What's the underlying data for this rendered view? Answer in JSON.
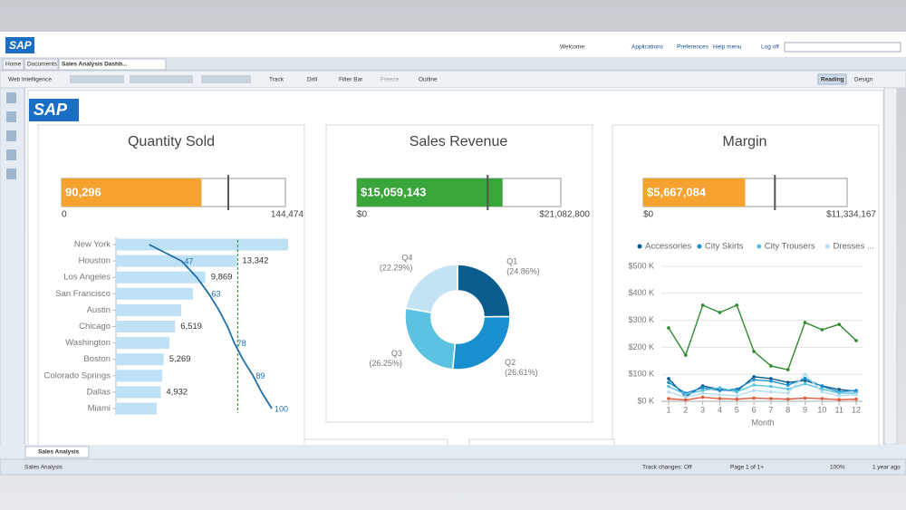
{
  "header": {
    "logo": "SAP",
    "welcome": "Welcome:",
    "links": [
      "Applications",
      "Preferences",
      "Help menu",
      "Log off"
    ]
  },
  "tabs": [
    "Home",
    "Documents",
    "Sales Analysis Dashb..."
  ],
  "toolbar": {
    "app": "Web Intelligence",
    "items": [
      "Track",
      "Drill",
      "Filter Bar",
      "Freeze",
      "Outline"
    ],
    "modes": [
      "Reading",
      "Design"
    ]
  },
  "dashboard": {
    "logo": "SAP",
    "quantity": {
      "title": "Quantity Sold",
      "gauge": {
        "value": 90296,
        "value_label": "90,296",
        "target": 107600,
        "range": [
          0,
          144474
        ],
        "range_labels": [
          "0",
          "144,474"
        ],
        "color": "#f5a231"
      },
      "bars": {
        "categories": [
          "New York",
          "Houston",
          "Los Angeles",
          "San Francisco",
          "Austin",
          "Chicago",
          "Washington",
          "Boston",
          "Colorado Springs",
          "Dallas",
          "Miami"
        ],
        "values": [
          19000,
          13342,
          9869,
          8500,
          7200,
          6519,
          5900,
          5269,
          5100,
          4932,
          4500
        ],
        "value_labels": [
          null,
          "13,342",
          "9,869",
          null,
          null,
          "6,519",
          null,
          "5,269",
          null,
          "4,932",
          null
        ],
        "xlim": [
          0,
          20000
        ],
        "color": "#bfe1f6",
        "pareto": {
          "values": [
            28,
            47,
            56,
            63,
            69,
            74,
            78,
            83,
            89,
            94,
            100
          ],
          "value_labels": [
            null,
            "47",
            null,
            "63",
            null,
            null,
            "78",
            null,
            "89",
            null,
            "100"
          ],
          "xlim": [
            0,
            100
          ],
          "color": "#1f6fa8",
          "threshold": 80,
          "threshold_color": "#3a9a3a"
        }
      }
    },
    "revenue": {
      "title": "Sales Revenue",
      "gauge": {
        "value": 15059143,
        "value_label": "$15,059,143",
        "target": 13520000,
        "range": [
          0,
          21082800
        ],
        "range_labels": [
          "$0",
          "$21,082,800"
        ],
        "color": "#3aa53a"
      },
      "pie": {
        "categories": [
          "Q1",
          "Q2",
          "Q3",
          "Q4"
        ],
        "values": [
          24.86,
          26.61,
          26.25,
          22.29
        ],
        "value_labels": [
          "(24.86%)",
          "(26.61%)",
          "(26.25%)",
          "(22.29%)"
        ],
        "colors": [
          "#0b5d8f",
          "#1a8fd0",
          "#5cc2e2",
          "#c3e3f4"
        ]
      }
    },
    "margin": {
      "title": "Margin",
      "gauge": {
        "value": 5667084,
        "value_label": "$5,667,084",
        "target": 7320000,
        "range": [
          0,
          11334167
        ],
        "range_labels": [
          "$0",
          "$11,334,167"
        ],
        "color": "#f5a231"
      },
      "lines": {
        "x": [
          1,
          2,
          3,
          4,
          5,
          6,
          7,
          8,
          9,
          10,
          11,
          12
        ],
        "xlim": [
          1,
          12
        ],
        "ylim": [
          0,
          500000
        ],
        "yticks": [
          {
            "value": 0,
            "label": "$0 K"
          },
          {
            "value": 100000,
            "label": "$100 K"
          },
          {
            "value": 200000,
            "label": "$200 K"
          },
          {
            "value": 300000,
            "label": "$300 K"
          },
          {
            "value": 400000,
            "label": "$400 K"
          },
          {
            "value": 500000,
            "label": "$500 K"
          }
        ],
        "xlabel": "Month",
        "legend_more": "...",
        "series": [
          {
            "name": "Accessories",
            "color": "#0b5d8f",
            "values": [
              84000,
              17000,
              57000,
              44000,
              37000,
              91000,
              84000,
              70000,
              77000,
              57000,
              44000,
              37000
            ]
          },
          {
            "name": "City Skirts",
            "color": "#1a8fd0",
            "values": [
              70000,
              30000,
              50000,
              40000,
              45000,
              80000,
              75000,
              60000,
              85000,
              55000,
              35000,
              40000
            ]
          },
          {
            "name": "City Trousers",
            "color": "#5cc2e2",
            "values": [
              55000,
              25000,
              40000,
              50000,
              35000,
              60000,
              55000,
              45000,
              65000,
              45000,
              30000,
              30000
            ]
          },
          {
            "name": "Dresses",
            "color": "#b5dcee",
            "values": [
              35000,
              15000,
              30000,
              25000,
              20000,
              40000,
              35000,
              30000,
              100000,
              35000,
              20000,
              25000
            ]
          },
          {
            "color": "#2e8b2e",
            "values": [
              272000,
              171000,
              356000,
              329000,
              356000,
              185000,
              131000,
              117000,
              292000,
              265000,
              285000,
              225000
            ]
          },
          {
            "color": "#e05a3a",
            "values": [
              10000,
              5000,
              15000,
              10000,
              8000,
              12000,
              10000,
              8000,
              12000,
              10000,
              6000,
              8000
            ]
          }
        ]
      }
    }
  },
  "footer": {
    "tab": "Sales Analysis",
    "status": "Sales Analysis",
    "track": "Track changes: Off",
    "page": "Page 1 of 1+",
    "zoom": "100%",
    "updated": "1 year ago"
  }
}
